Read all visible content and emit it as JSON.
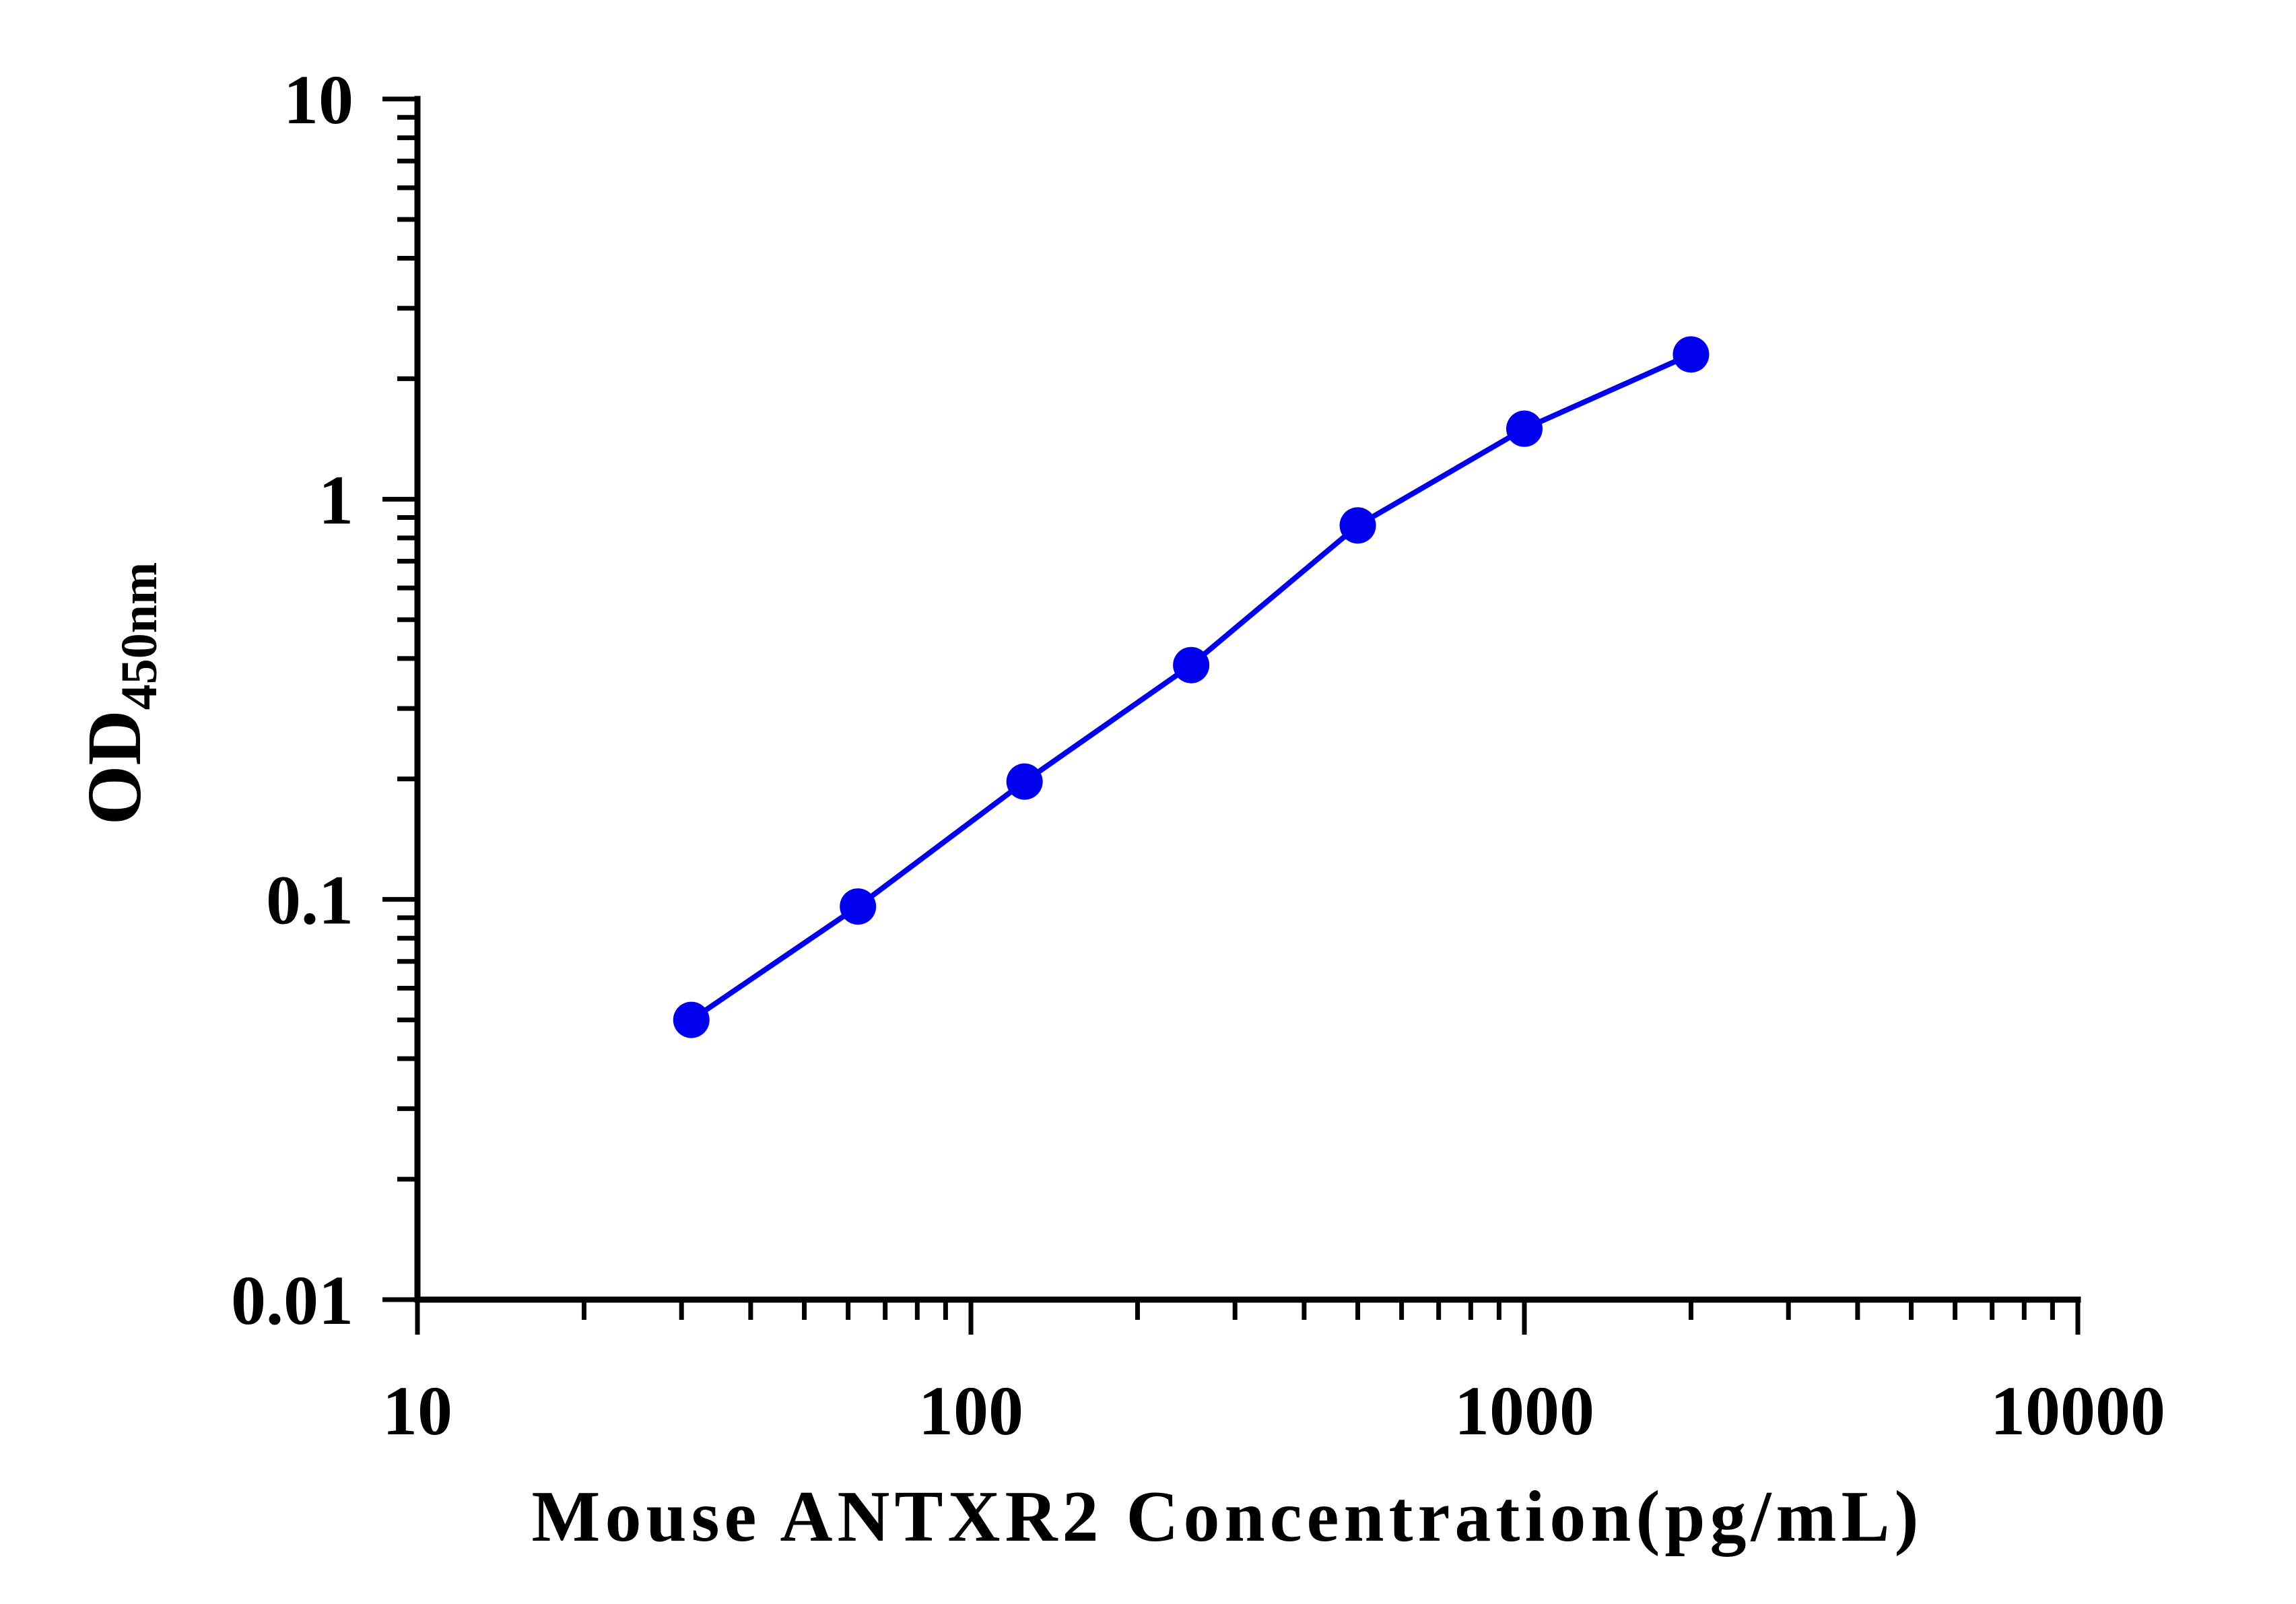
{
  "chart_data": {
    "type": "line",
    "title": "",
    "xlabel": "Mouse ANTXR2 Concentration(pg/mL)",
    "ylabel": {
      "main": "OD",
      "subscript": "450nm"
    },
    "x_scale": "log",
    "y_scale": "log",
    "xlim": [
      10,
      10000
    ],
    "ylim": [
      0.01,
      10
    ],
    "x_ticks": [
      {
        "value": 10,
        "label": "10"
      },
      {
        "value": 100,
        "label": "100"
      },
      {
        "value": 1000,
        "label": "1000"
      },
      {
        "value": 10000,
        "label": "10000"
      }
    ],
    "y_ticks": [
      {
        "value": 0.01,
        "label": "0.01"
      },
      {
        "value": 0.1,
        "label": "0.1"
      },
      {
        "value": 1,
        "label": "1"
      },
      {
        "value": 10,
        "label": "10"
      }
    ],
    "grid": false,
    "legend": "none",
    "series": [
      {
        "color": "#0000ee",
        "marker": "circle",
        "x": [
          31.25,
          62.5,
          125,
          250,
          500,
          1000,
          2000
        ],
        "y": [
          0.05,
          0.096,
          0.197,
          0.385,
          0.86,
          1.5,
          2.3
        ]
      }
    ]
  }
}
